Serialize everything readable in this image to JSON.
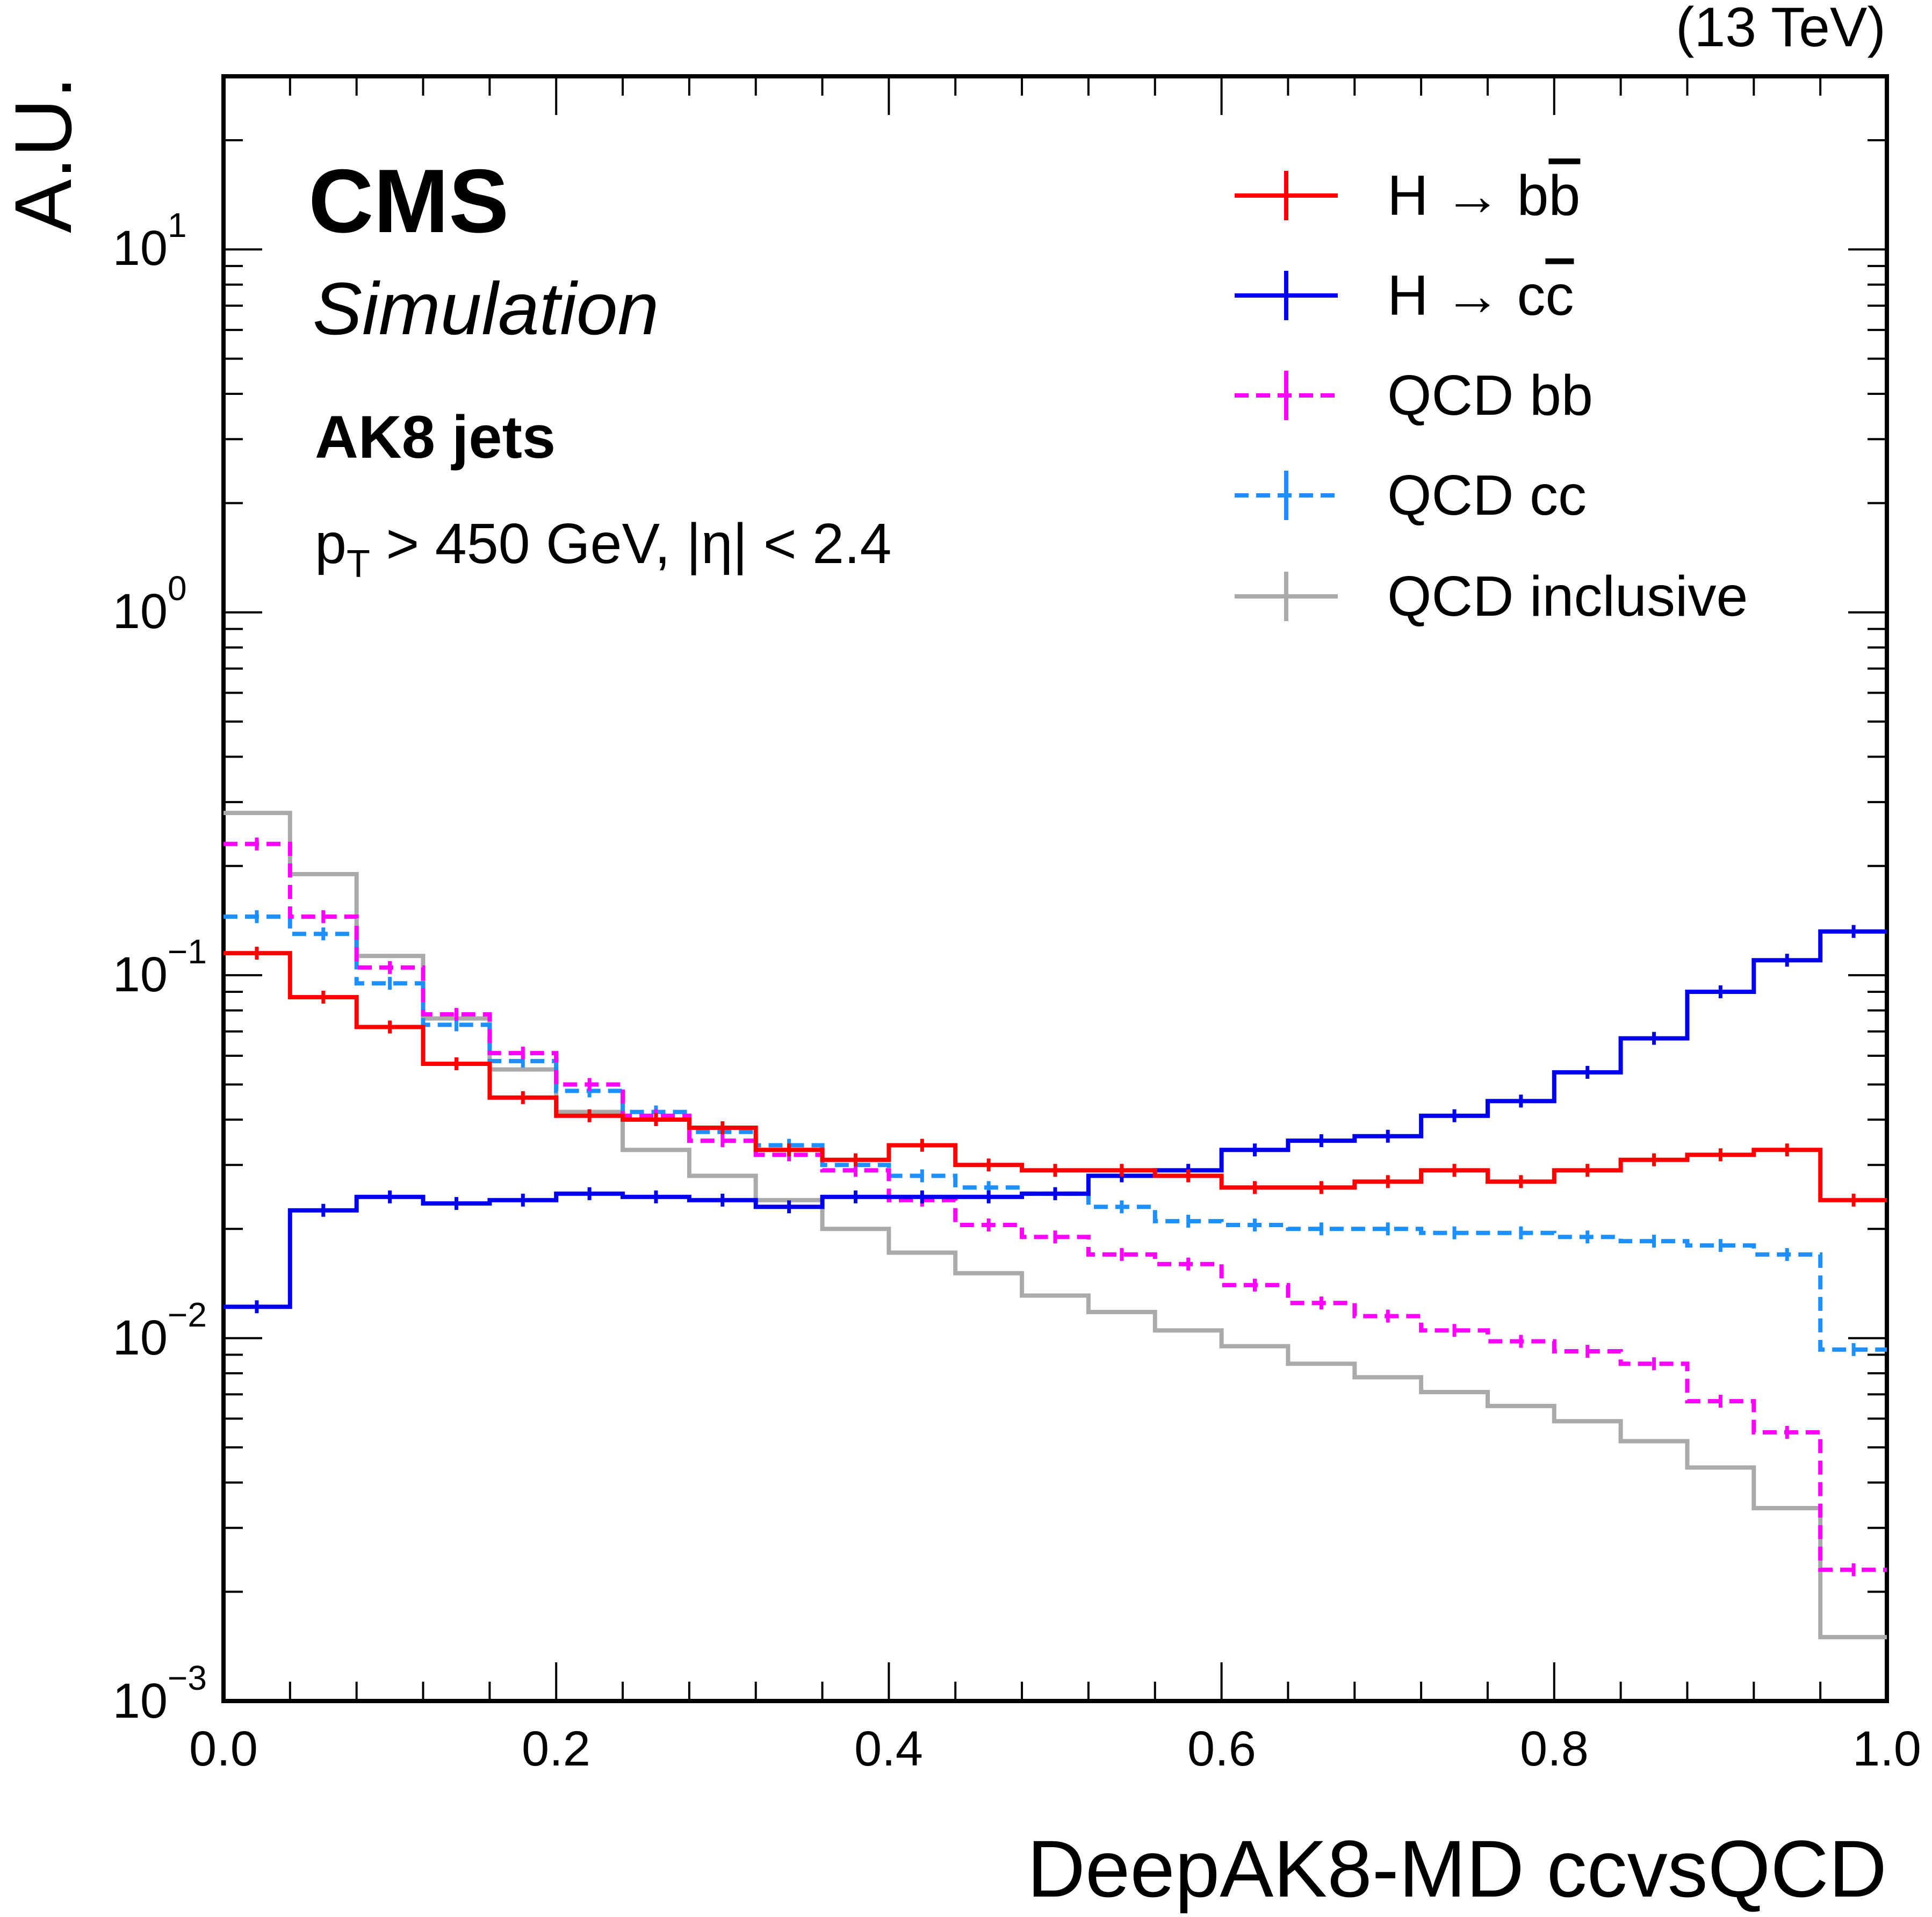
{
  "chart_data": {
    "type": "line",
    "drawstyle": "steps",
    "lumi_label": "(13 TeV)",
    "experiment": "CMS",
    "subtitle": "Simulation",
    "annotations": [
      "AK8 jets",
      "p_T > 450 GeV, |η| < 2.4"
    ],
    "annotation_cut_parts": {
      "p": "p",
      "sub": "T",
      "rest": " > 450 GeV, |η| < 2.4"
    },
    "xlabel": "DeepAK8-MD ccvsQCD",
    "ylabel": "A.U.",
    "xlim": [
      0.0,
      1.0
    ],
    "ylim": [
      0.001,
      30
    ],
    "yscale": "log",
    "xticks": [
      "0.0",
      "0.2",
      "0.4",
      "0.6",
      "0.8",
      "1.0"
    ],
    "yticks": [
      {
        "base": "10",
        "exp": "−3",
        "value": 0.001
      },
      {
        "base": "10",
        "exp": "−2",
        "value": 0.01
      },
      {
        "base": "10",
        "exp": "−1",
        "value": 0.1
      },
      {
        "base": "10",
        "exp": "0",
        "value": 1
      },
      {
        "base": "10",
        "exp": "1",
        "value": 10
      }
    ],
    "grid": false,
    "legend_position": "top-right",
    "bin_edges": [
      0.0,
      0.04,
      0.08,
      0.12,
      0.16,
      0.2,
      0.24,
      0.28,
      0.32,
      0.36,
      0.4,
      0.44,
      0.48,
      0.52,
      0.56,
      0.6,
      0.64,
      0.68,
      0.72,
      0.76,
      0.8,
      0.84,
      0.88,
      0.92,
      0.96,
      1.0
    ],
    "series": [
      {
        "name": "H → bb̄",
        "legend_main": "H → b",
        "legend_bar": "b",
        "color": "#ff0000",
        "style": "solid",
        "errorbars": true,
        "values": [
          0.115,
          0.087,
          0.072,
          0.057,
          0.046,
          0.041,
          0.04,
          0.038,
          0.033,
          0.031,
          0.034,
          0.03,
          0.029,
          0.029,
          0.028,
          0.026,
          0.026,
          0.027,
          0.029,
          0.027,
          0.029,
          0.031,
          0.032,
          0.033,
          0.024
        ]
      },
      {
        "name": "H → cc̄",
        "legend_main": "H → c",
        "legend_bar": "c",
        "color": "#0000ee",
        "style": "solid",
        "errorbars": true,
        "values": [
          0.0122,
          0.0225,
          0.0245,
          0.0235,
          0.024,
          0.025,
          0.0245,
          0.024,
          0.023,
          0.0245,
          0.0245,
          0.0245,
          0.025,
          0.028,
          0.029,
          0.033,
          0.035,
          0.036,
          0.041,
          0.045,
          0.054,
          0.067,
          0.09,
          0.11,
          0.132
        ]
      },
      {
        "name": "QCD bb",
        "color": "#ff00ff",
        "style": "dashed",
        "errorbars": true,
        "values": [
          0.23,
          0.145,
          0.105,
          0.078,
          0.061,
          0.05,
          0.041,
          0.035,
          0.032,
          0.029,
          0.024,
          0.0205,
          0.019,
          0.017,
          0.016,
          0.014,
          0.0125,
          0.0115,
          0.0105,
          0.0098,
          0.0092,
          0.0085,
          0.0067,
          0.0055,
          0.0023
        ]
      },
      {
        "name": "QCD cc",
        "color": "#1e8fff",
        "style": "dashed",
        "errorbars": true,
        "values": [
          0.145,
          0.13,
          0.095,
          0.073,
          0.058,
          0.048,
          0.042,
          0.037,
          0.034,
          0.03,
          0.028,
          0.026,
          0.025,
          0.023,
          0.021,
          0.0205,
          0.02,
          0.02,
          0.0195,
          0.0195,
          0.019,
          0.0185,
          0.018,
          0.017,
          0.0093
        ]
      },
      {
        "name": "QCD inclusive",
        "color": "#aaaaaa",
        "style": "solid",
        "errorbars": false,
        "values": [
          0.28,
          0.19,
          0.113,
          0.076,
          0.055,
          0.042,
          0.033,
          0.028,
          0.024,
          0.02,
          0.0172,
          0.0151,
          0.0131,
          0.0118,
          0.0105,
          0.0095,
          0.0085,
          0.0078,
          0.0071,
          0.0065,
          0.0059,
          0.0052,
          0.0044,
          0.0034,
          0.0015
        ]
      }
    ]
  }
}
